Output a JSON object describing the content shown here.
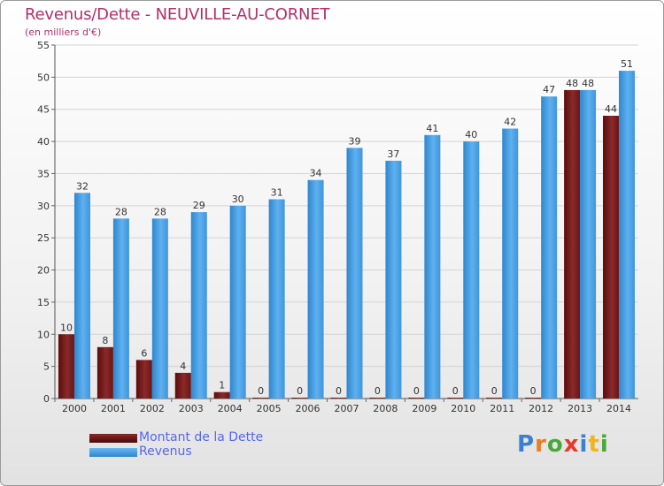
{
  "chart_data": {
    "type": "bar",
    "title": "Revenus/Dette - NEUVILLE-AU-CORNET",
    "subtitle": "(en milliers d'€)",
    "categories": [
      "2000",
      "2001",
      "2002",
      "2003",
      "2004",
      "2005",
      "2006",
      "2007",
      "2008",
      "2009",
      "2010",
      "2011",
      "2012",
      "2013",
      "2014"
    ],
    "series": [
      {
        "name": "Montant de la Dette",
        "values": [
          10,
          8,
          6,
          4,
          1,
          0,
          0,
          0,
          0,
          0,
          0,
          0,
          0,
          48,
          44
        ],
        "color": "#7a1a1a"
      },
      {
        "name": "Revenus",
        "values": [
          32,
          28,
          28,
          29,
          30,
          31,
          34,
          39,
          37,
          41,
          40,
          42,
          47,
          48,
          51
        ],
        "color": "#4da3e8"
      }
    ],
    "ylim": [
      0,
      55
    ],
    "yticks": [
      0,
      5,
      10,
      15,
      20,
      25,
      30,
      35,
      40,
      45,
      50,
      55
    ],
    "grid": true,
    "legend": "bottom-left"
  },
  "logo": {
    "text": "Proxiti"
  }
}
